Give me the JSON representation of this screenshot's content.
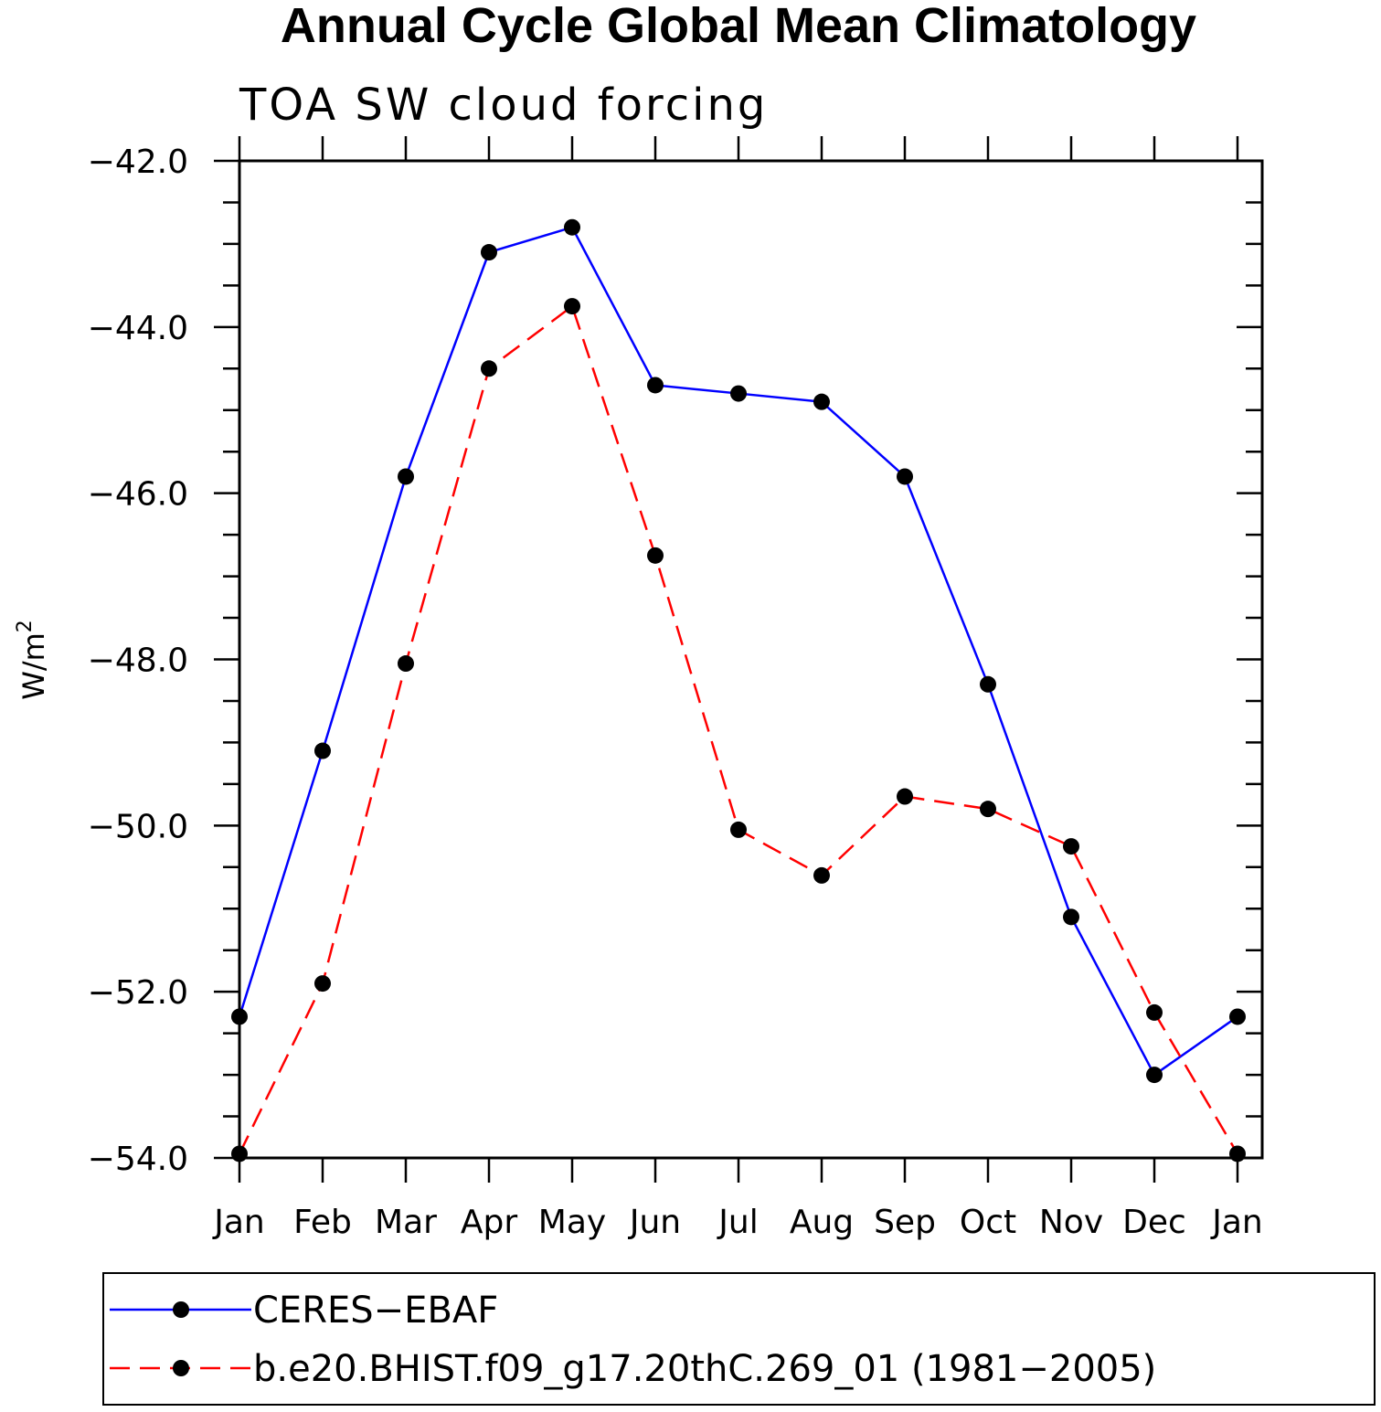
{
  "chart_data": {
    "type": "line",
    "title": "Annual Cycle Global Mean Climatology",
    "subtitle": "TOA SW cloud forcing",
    "ylabel": "W/m",
    "ylabel_superscript": "2",
    "ylim": [
      -54.0,
      -42.0
    ],
    "y_ticks": [
      "-54.0",
      "-52.0",
      "-50.0",
      "-48.0",
      "-46.0",
      "-44.0",
      "-42.0"
    ],
    "categories": [
      "Jan",
      "Feb",
      "Mar",
      "Apr",
      "May",
      "Jun",
      "Jul",
      "Aug",
      "Sep",
      "Oct",
      "Nov",
      "Dec",
      "Jan"
    ],
    "grid": false,
    "legend_position": "bottom",
    "series": [
      {
        "name": "CERES-EBAF",
        "color": "#0000ff",
        "line_style": "solid",
        "marker": "filled-circle",
        "values": [
          -52.3,
          -49.1,
          -45.8,
          -43.1,
          -42.8,
          -44.7,
          -44.8,
          -44.9,
          -45.8,
          -48.3,
          -51.1,
          -53.0,
          -52.3
        ]
      },
      {
        "name": "b.e20.BHIST.f09_g17.20thC.269_01 (1981-2005)",
        "color": "#ff0000",
        "line_style": "dashed",
        "marker": "filled-circle",
        "values": [
          -53.95,
          -51.9,
          -48.05,
          -44.5,
          -43.75,
          -46.75,
          -50.05,
          -50.6,
          -49.65,
          -49.8,
          -50.25,
          -52.25,
          -53.95
        ]
      }
    ]
  }
}
